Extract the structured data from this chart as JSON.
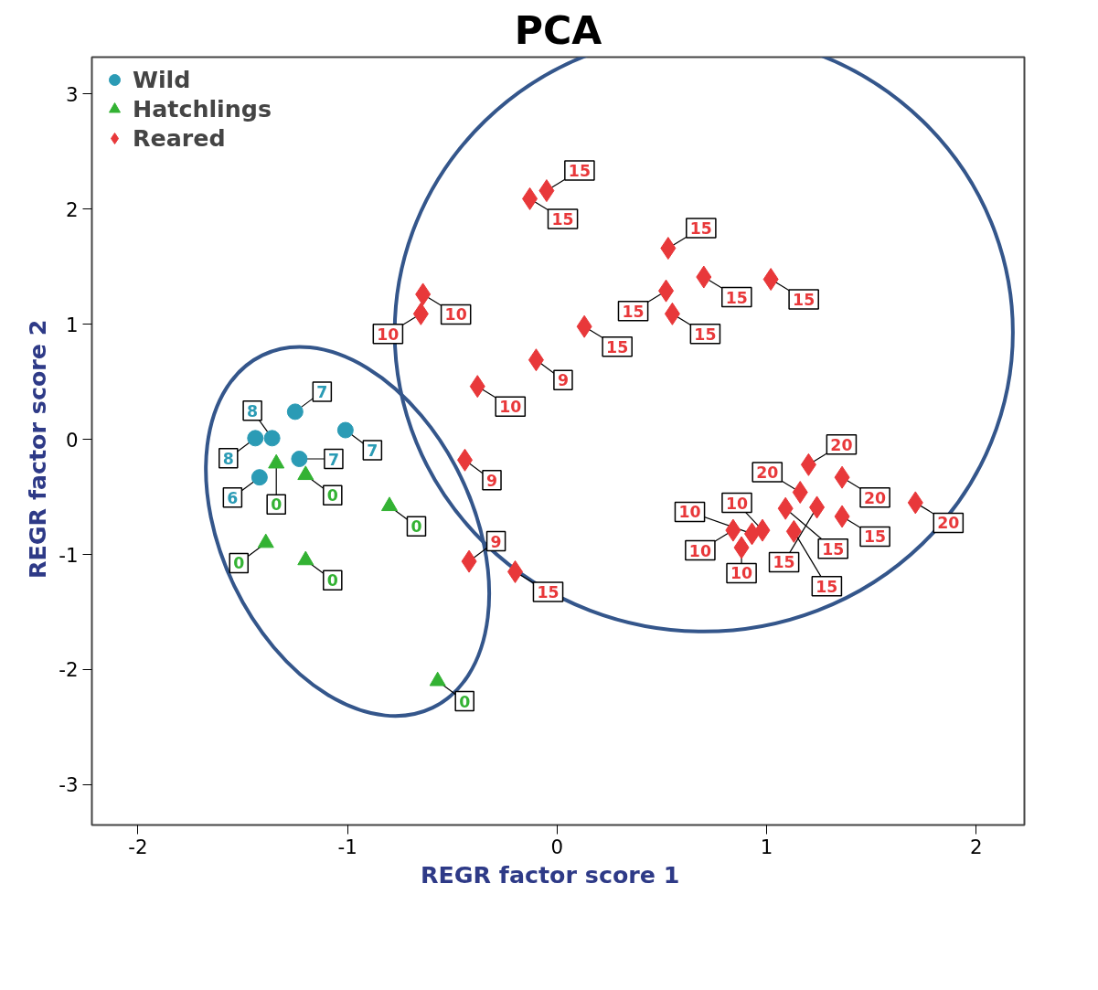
{
  "chart_data": {
    "type": "scatter",
    "title": "PCA",
    "xlabel": "REGR factor score   1",
    "ylabel": "REGR factor score   2",
    "xlim": [
      -2.22,
      2.23
    ],
    "ylim": [
      -3.35,
      3.32
    ],
    "xticks": [
      -2,
      -1,
      0,
      1,
      2
    ],
    "yticks": [
      -3,
      -2,
      -1,
      0,
      1,
      2,
      3
    ],
    "grid": false,
    "legend": "top left",
    "series": [
      {
        "name": "Wild",
        "color": "#2b9bb5",
        "marker": "circle",
        "x": [
          -1.44,
          -1.36,
          -1.25,
          -1.23,
          -1.42,
          -1.01
        ],
        "values": [
          0.01,
          0.01,
          0.24,
          -0.17,
          -0.33,
          0.08
        ]
      },
      {
        "name": "Hatchlings",
        "color": "#33b233",
        "marker": "triangle",
        "x": [
          -1.34,
          -1.2,
          -1.39,
          -1.2,
          -0.8,
          -0.57
        ],
        "values": [
          -0.21,
          -0.31,
          -0.9,
          -1.05,
          -0.58,
          -2.1
        ]
      },
      {
        "name": "Reared",
        "color": "#e8383a",
        "marker": "diamond",
        "x": [
          -0.13,
          -0.05,
          -0.64,
          -0.65,
          0.53,
          0.52,
          0.55,
          0.7,
          1.02,
          0.13,
          -0.1,
          -0.38,
          -0.44,
          -0.42,
          -0.2,
          1.2,
          1.36,
          1.71,
          1.16,
          1.09,
          1.24,
          1.36,
          1.13,
          0.98,
          0.84,
          0.88,
          0.93
        ],
        "values": [
          2.09,
          2.16,
          1.26,
          1.09,
          1.66,
          1.29,
          1.09,
          1.41,
          1.39,
          0.98,
          0.69,
          0.46,
          -0.18,
          -1.06,
          -1.15,
          -0.22,
          -0.33,
          -0.55,
          -0.46,
          -0.6,
          -0.59,
          -0.67,
          -0.8,
          -0.79,
          -0.79,
          -0.94,
          -0.82
        ]
      }
    ],
    "annotations": [
      {
        "text": "8",
        "x": -1.44,
        "y": 0.01
      },
      {
        "text": "8",
        "x": -1.36,
        "y": 0.01
      },
      {
        "text": "7",
        "x": -1.25,
        "y": 0.24
      },
      {
        "text": "7",
        "x": -1.23,
        "y": -0.17
      },
      {
        "text": "6",
        "x": -1.42,
        "y": -0.33
      },
      {
        "text": "7",
        "x": -1.01,
        "y": 0.08
      },
      {
        "text": "0",
        "x": -1.34,
        "y": -0.21
      },
      {
        "text": "0",
        "x": -1.2,
        "y": -0.31
      },
      {
        "text": "0",
        "x": -1.39,
        "y": -0.9
      },
      {
        "text": "0",
        "x": -1.2,
        "y": -1.05
      },
      {
        "text": "0",
        "x": -0.8,
        "y": -0.58
      },
      {
        "text": "0",
        "x": -0.57,
        "y": -2.1
      },
      {
        "text": "15",
        "x": -0.13,
        "y": 2.09
      },
      {
        "text": "15",
        "x": -0.05,
        "y": 2.16
      },
      {
        "text": "10",
        "x": -0.64,
        "y": 1.26
      },
      {
        "text": "10",
        "x": -0.65,
        "y": 1.09
      },
      {
        "text": "15",
        "x": 0.53,
        "y": 1.66
      },
      {
        "text": "15",
        "x": 0.52,
        "y": 1.29
      },
      {
        "text": "15",
        "x": 0.55,
        "y": 1.09
      },
      {
        "text": "15",
        "x": 0.7,
        "y": 1.41
      },
      {
        "text": "15",
        "x": 1.02,
        "y": 1.39
      },
      {
        "text": "15",
        "x": 0.13,
        "y": 0.98
      },
      {
        "text": "9",
        "x": -0.1,
        "y": 0.69
      },
      {
        "text": "10",
        "x": -0.38,
        "y": 0.46
      },
      {
        "text": "9",
        "x": -0.44,
        "y": -0.18
      },
      {
        "text": "9",
        "x": -0.42,
        "y": -1.06
      },
      {
        "text": "15",
        "x": -0.2,
        "y": -1.15
      },
      {
        "text": "20",
        "x": 1.2,
        "y": -0.22
      },
      {
        "text": "20",
        "x": 1.36,
        "y": -0.33
      },
      {
        "text": "20",
        "x": 1.71,
        "y": -0.55
      },
      {
        "text": "20",
        "x": 1.16,
        "y": -0.46
      },
      {
        "text": "15",
        "x": 1.09,
        "y": -0.6
      },
      {
        "text": "15",
        "x": 1.24,
        "y": -0.59
      },
      {
        "text": "15",
        "x": 1.36,
        "y": -0.67
      },
      {
        "text": "15",
        "x": 1.13,
        "y": -0.8
      },
      {
        "text": "10",
        "x": 0.98,
        "y": -0.79
      },
      {
        "text": "10",
        "x": 0.84,
        "y": -0.79
      },
      {
        "text": "10",
        "x": 0.88,
        "y": -0.94
      },
      {
        "text": "10",
        "x": 0.93,
        "y": -0.82
      }
    ]
  }
}
